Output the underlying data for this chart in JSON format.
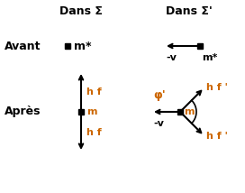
{
  "dans_sigma": "Dans Σ",
  "dans_sigma_prime": "Dans Σ'",
  "avant": "Avant",
  "apres": "Après",
  "text_color": "#000000",
  "orange_color": "#cc6600",
  "label_m_star": "m*",
  "label_m": "m",
  "label_hf": "h f",
  "label_hf_prime": "h f '",
  "label_neg_v": "-v",
  "label_phi_prime": "φ'",
  "bg_color": "#ffffff"
}
